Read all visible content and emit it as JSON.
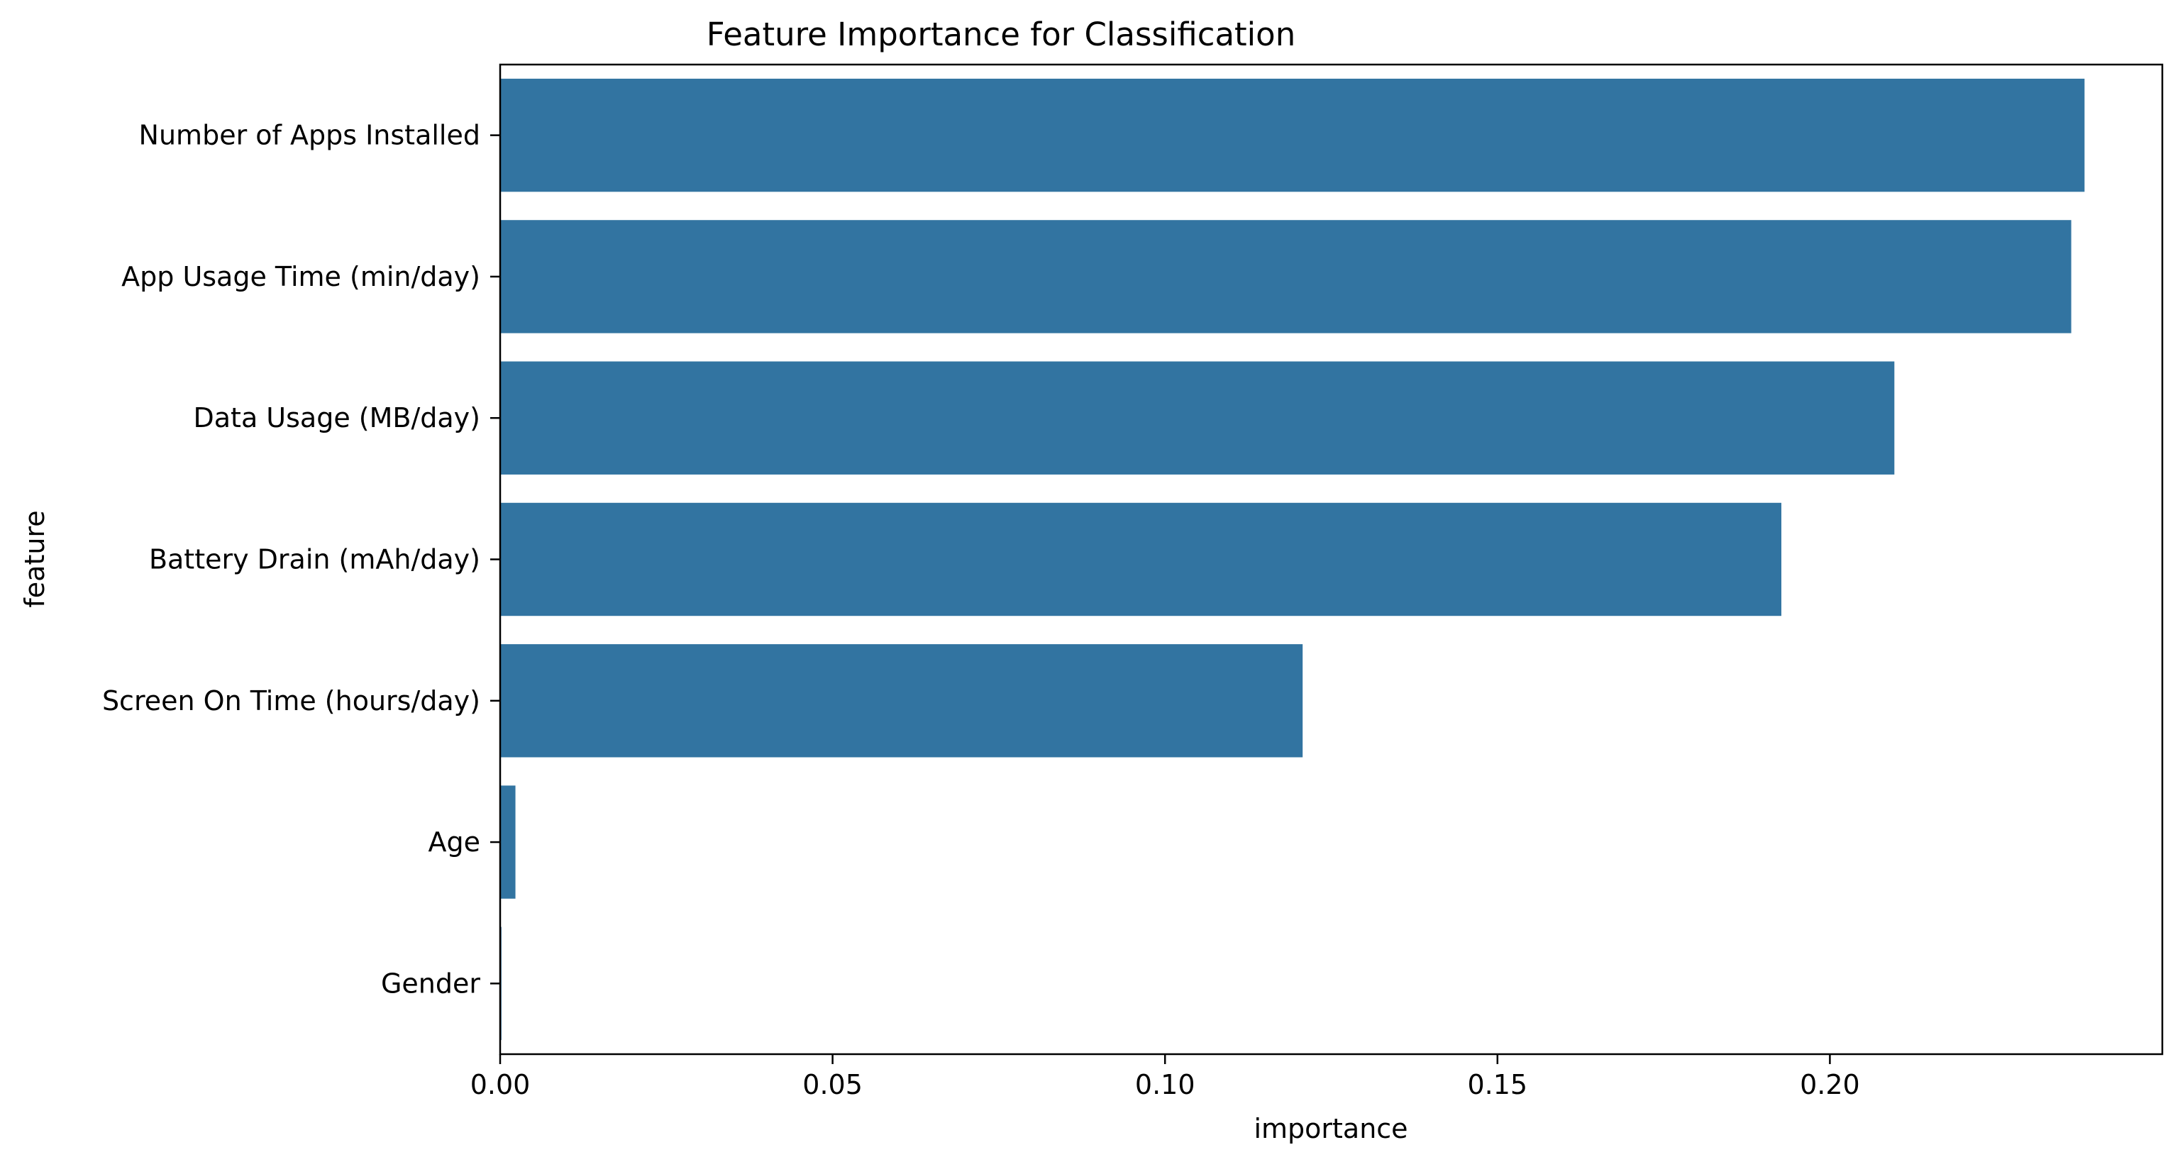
{
  "chart_data": {
    "type": "bar",
    "orientation": "horizontal",
    "title": "Feature Importance for Classification",
    "xlabel": "importance",
    "ylabel": "feature",
    "categories": [
      "Number of Apps Installed",
      "App Usage Time (min/day)",
      "Data Usage (MB/day)",
      "Battery Drain (mAh/day)",
      "Screen On Time (hours/day)",
      "Age",
      "Gender"
    ],
    "values": [
      0.2383,
      0.2363,
      0.2097,
      0.1927,
      0.1207,
      0.0023,
      0.0002
    ],
    "xlim": [
      0.0,
      0.25
    ],
    "x_ticks": [
      "0.00",
      "0.05",
      "0.10",
      "0.15",
      "0.20"
    ],
    "bar_color": "#3274a1",
    "grid": false,
    "legend": "none"
  }
}
